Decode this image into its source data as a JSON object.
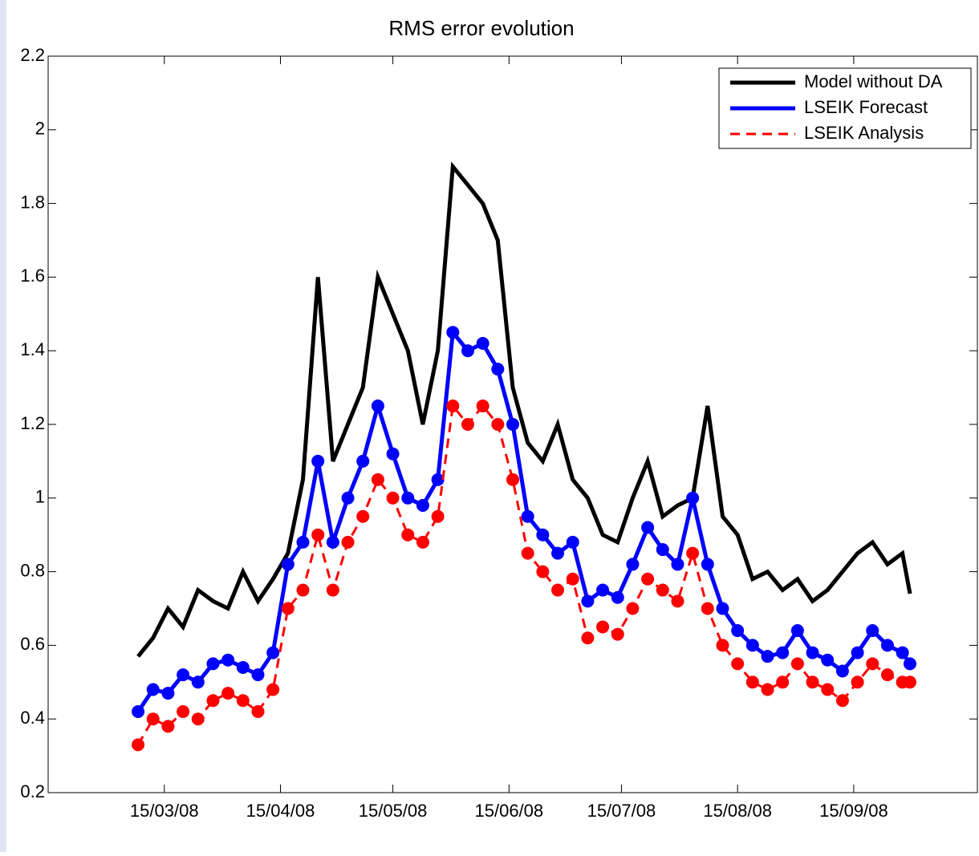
{
  "chart_data": {
    "type": "line",
    "title": "RMS error evolution",
    "x": [
      "08/03/08",
      "12/03/08",
      "16/03/08",
      "20/03/08",
      "24/03/08",
      "28/03/08",
      "01/04/08",
      "05/04/08",
      "09/04/08",
      "13/04/08",
      "17/04/08",
      "21/04/08",
      "25/04/08",
      "29/04/08",
      "03/05/08",
      "07/05/08",
      "11/05/08",
      "15/05/08",
      "19/05/08",
      "23/05/08",
      "27/05/08",
      "31/05/08",
      "04/06/08",
      "08/06/08",
      "12/06/08",
      "16/06/08",
      "20/06/08",
      "24/06/08",
      "28/06/08",
      "02/07/08",
      "06/07/08",
      "10/07/08",
      "14/07/08",
      "18/07/08",
      "22/07/08",
      "26/07/08",
      "30/07/08",
      "03/08/08",
      "07/08/08",
      "11/08/08",
      "15/08/08",
      "19/08/08",
      "23/08/08",
      "27/08/08",
      "31/08/08",
      "04/09/08",
      "08/09/08",
      "12/09/08",
      "16/09/08",
      "20/09/08",
      "24/09/08",
      "28/09/08",
      "30/09/08"
    ],
    "series": [
      {
        "name": "Model without DA",
        "color": "#000000",
        "dash": false,
        "markers": false,
        "values": [
          0.57,
          0.62,
          0.7,
          0.65,
          0.75,
          0.72,
          0.7,
          0.8,
          0.72,
          0.78,
          0.85,
          1.05,
          1.6,
          1.1,
          1.2,
          1.3,
          1.6,
          1.5,
          1.4,
          1.2,
          1.4,
          1.9,
          1.85,
          1.8,
          1.7,
          1.3,
          1.15,
          1.1,
          1.2,
          1.05,
          1.0,
          0.9,
          0.88,
          1.0,
          1.1,
          0.95,
          0.98,
          1.0,
          1.25,
          0.95,
          0.9,
          0.78,
          0.8,
          0.75,
          0.78,
          0.72,
          0.75,
          0.8,
          0.85,
          0.88,
          0.82,
          0.85,
          0.74
        ]
      },
      {
        "name": "LSEIK Forecast",
        "color": "#0000ff",
        "dash": false,
        "markers": true,
        "values": [
          0.42,
          0.48,
          0.47,
          0.52,
          0.5,
          0.55,
          0.56,
          0.54,
          0.52,
          0.58,
          0.82,
          0.88,
          1.1,
          0.88,
          1.0,
          1.1,
          1.25,
          1.12,
          1.0,
          0.98,
          1.05,
          1.45,
          1.4,
          1.42,
          1.35,
          1.2,
          0.95,
          0.9,
          0.85,
          0.88,
          0.72,
          0.75,
          0.73,
          0.82,
          0.92,
          0.86,
          0.82,
          1.0,
          0.82,
          0.7,
          0.64,
          0.6,
          0.57,
          0.58,
          0.64,
          0.58,
          0.56,
          0.53,
          0.58,
          0.64,
          0.6,
          0.58,
          0.55
        ]
      },
      {
        "name": "LSEIK Analysis",
        "color": "#ff0000",
        "dash": true,
        "markers": true,
        "values": [
          0.33,
          0.4,
          0.38,
          0.42,
          0.4,
          0.45,
          0.47,
          0.45,
          0.42,
          0.48,
          0.7,
          0.75,
          0.9,
          0.75,
          0.88,
          0.95,
          1.05,
          1.0,
          0.9,
          0.88,
          0.95,
          1.25,
          1.2,
          1.25,
          1.2,
          1.05,
          0.85,
          0.8,
          0.75,
          0.78,
          0.62,
          0.65,
          0.63,
          0.7,
          0.78,
          0.75,
          0.72,
          0.85,
          0.7,
          0.6,
          0.55,
          0.5,
          0.48,
          0.5,
          0.55,
          0.5,
          0.48,
          0.45,
          0.5,
          0.55,
          0.52,
          0.5,
          0.5
        ]
      }
    ],
    "xlim": [
      "13/02/08",
      "18/10/08"
    ],
    "xticks": [
      "15/03/08",
      "15/04/08",
      "15/05/08",
      "15/06/08",
      "15/07/08",
      "15/08/08",
      "15/09/08"
    ],
    "ylim": [
      0.2,
      2.2
    ],
    "yticks": [
      0.2,
      0.4,
      0.6,
      0.8,
      1,
      1.2,
      1.4,
      1.6,
      1.8,
      2,
      2.2
    ],
    "grid": false,
    "legend": "top-right"
  }
}
